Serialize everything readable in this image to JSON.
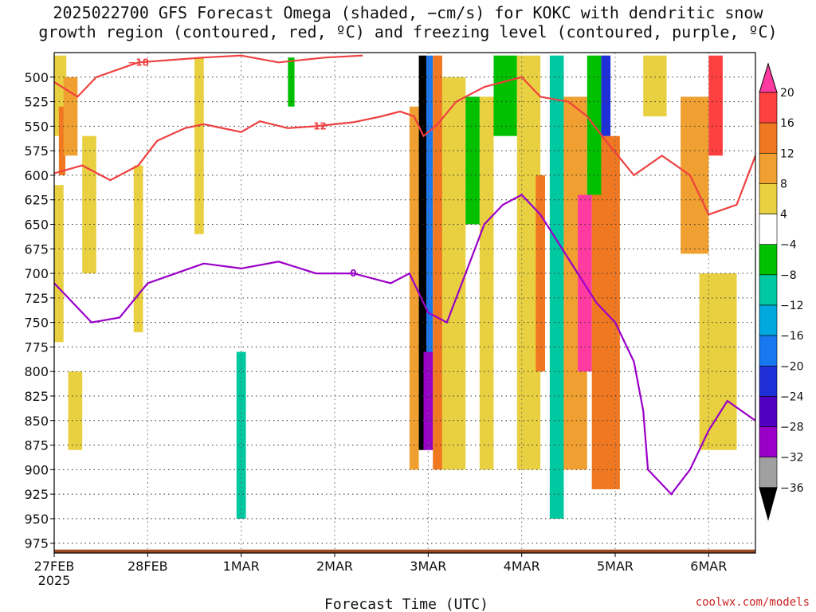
{
  "title": {
    "line1": "2025022700 GFS Forecast Omega (shaded, −cm/s) for KOKC with dendritic snow",
    "line2": "growth region (contoured, red, ºC) and freezing level (contoured, purple, ºC)"
  },
  "credit": "coolwx.com/models",
  "chart_data": {
    "type": "heatmap",
    "title": "2025022700 GFS Forecast Omega (shaded, −cm/s) for KOKC with dendritic snow growth region (contoured, red, ºC) and freezing level (contoured, purple, ºC)",
    "xlabel": "Forecast Time (UTC)",
    "ylabel": "",
    "x_ticks": [
      {
        "label": "27FEB",
        "sublabel": "2025",
        "day": 0
      },
      {
        "label": "28FEB",
        "day": 1
      },
      {
        "label": "1MAR",
        "day": 2
      },
      {
        "label": "2MAR",
        "day": 3
      },
      {
        "label": "3MAR",
        "day": 4
      },
      {
        "label": "4MAR",
        "day": 5
      },
      {
        "label": "5MAR",
        "day": 6
      },
      {
        "label": "6MAR",
        "day": 7
      }
    ],
    "xlim": [
      0,
      7.5
    ],
    "y_ticks": [
      500,
      525,
      550,
      575,
      600,
      625,
      650,
      675,
      700,
      725,
      750,
      775,
      800,
      825,
      850,
      875,
      900,
      925,
      950,
      975
    ],
    "ylim": [
      475,
      985
    ],
    "y_units": "hPa",
    "grid": true,
    "colorbar": {
      "ticks": [
        "20",
        "16",
        "12",
        "8",
        "4",
        "−4",
        "−8",
        "−12",
        "−16",
        "−20",
        "−24",
        "−28",
        "−32",
        "−36"
      ],
      "colors": [
        "#ff3aa0",
        "#ff4040",
        "#f07820",
        "#f0a030",
        "#e8d040",
        "#ffffff",
        "#00c000",
        "#00c8a0",
        "#00a8e0",
        "#1878f0",
        "#2030d8",
        "#5000c0",
        "#9a00c8",
        "#a0a0a0",
        "#000000"
      ]
    },
    "omega_regions": [
      {
        "day": [
          0.0,
          0.13
        ],
        "p": [
          478,
          560
        ],
        "color": "#e8d040"
      },
      {
        "day": [
          0.05,
          0.12
        ],
        "p": [
          530,
          600
        ],
        "color": "#f07820"
      },
      {
        "day": [
          0.1,
          0.25
        ],
        "p": [
          500,
          580
        ],
        "color": "#f0a030"
      },
      {
        "day": [
          0.0,
          0.1
        ],
        "p": [
          610,
          770
        ],
        "color": "#e8d040"
      },
      {
        "day": [
          0.15,
          0.3
        ],
        "p": [
          800,
          880
        ],
        "color": "#e8d040"
      },
      {
        "day": [
          0.3,
          0.45
        ],
        "p": [
          560,
          700
        ],
        "color": "#e8d040"
      },
      {
        "day": [
          0.85,
          0.95
        ],
        "p": [
          590,
          760
        ],
        "color": "#e8d040"
      },
      {
        "day": [
          1.5,
          1.6
        ],
        "p": [
          480,
          660
        ],
        "color": "#e8d040"
      },
      {
        "day": [
          1.95,
          2.05
        ],
        "p": [
          780,
          950
        ],
        "color": "#00c8a0"
      },
      {
        "day": [
          2.5,
          2.57
        ],
        "p": [
          480,
          530
        ],
        "color": "#00c000"
      },
      {
        "day": [
          3.8,
          3.9
        ],
        "p": [
          530,
          900
        ],
        "color": "#f0a030"
      },
      {
        "day": [
          3.9,
          3.98
        ],
        "p": [
          478,
          880
        ],
        "color": "#000000"
      },
      {
        "day": [
          3.98,
          4.05
        ],
        "p": [
          478,
          880
        ],
        "color": "#1878f0"
      },
      {
        "day": [
          3.95,
          4.05
        ],
        "p": [
          780,
          880
        ],
        "color": "#9a00c8"
      },
      {
        "day": [
          4.05,
          4.15
        ],
        "p": [
          478,
          900
        ],
        "color": "#f07820"
      },
      {
        "day": [
          4.15,
          4.4
        ],
        "p": [
          500,
          900
        ],
        "color": "#e8d040"
      },
      {
        "day": [
          4.4,
          4.55
        ],
        "p": [
          520,
          650
        ],
        "color": "#00c000"
      },
      {
        "day": [
          4.55,
          4.7
        ],
        "p": [
          520,
          900
        ],
        "color": "#e8d040"
      },
      {
        "day": [
          4.7,
          4.95
        ],
        "p": [
          478,
          560
        ],
        "color": "#00c000"
      },
      {
        "day": [
          4.95,
          5.2
        ],
        "p": [
          478,
          900
        ],
        "color": "#e8d040"
      },
      {
        "day": [
          5.15,
          5.25
        ],
        "p": [
          600,
          800
        ],
        "color": "#f07820"
      },
      {
        "day": [
          5.3,
          5.45
        ],
        "p": [
          478,
          950
        ],
        "color": "#00c8a0"
      },
      {
        "day": [
          5.45,
          5.7
        ],
        "p": [
          520,
          900
        ],
        "color": "#f0a030"
      },
      {
        "day": [
          5.6,
          5.75
        ],
        "p": [
          620,
          800
        ],
        "color": "#ff3aa0"
      },
      {
        "day": [
          5.75,
          6.05
        ],
        "p": [
          560,
          920
        ],
        "color": "#f07820"
      },
      {
        "day": [
          5.85,
          5.95
        ],
        "p": [
          478,
          560
        ],
        "color": "#2030d8"
      },
      {
        "day": [
          5.7,
          5.85
        ],
        "p": [
          478,
          620
        ],
        "color": "#00c000"
      },
      {
        "day": [
          6.3,
          6.55
        ],
        "p": [
          478,
          540
        ],
        "color": "#e8d040"
      },
      {
        "day": [
          6.7,
          7.0
        ],
        "p": [
          520,
          680
        ],
        "color": "#f0a030"
      },
      {
        "day": [
          7.0,
          7.15
        ],
        "p": [
          478,
          580
        ],
        "color": "#ff4040"
      },
      {
        "day": [
          6.9,
          7.3
        ],
        "p": [
          700,
          880
        ],
        "color": "#e8d040"
      }
    ],
    "contours": [
      {
        "label": "−18",
        "color": "#ee4040",
        "points": [
          [
            0.0,
            505
          ],
          [
            0.25,
            520
          ],
          [
            0.45,
            500
          ],
          [
            0.9,
            485
          ],
          [
            1.6,
            480
          ],
          [
            2.0,
            478
          ],
          [
            2.4,
            485
          ],
          [
            2.9,
            480
          ],
          [
            3.3,
            478
          ]
        ]
      },
      {
        "label": "−12",
        "color": "#ee4040",
        "points": [
          [
            0.0,
            598
          ],
          [
            0.3,
            590
          ],
          [
            0.6,
            605
          ],
          [
            0.9,
            590
          ],
          [
            1.1,
            565
          ],
          [
            1.4,
            552
          ],
          [
            1.6,
            548
          ],
          [
            2.0,
            556
          ],
          [
            2.2,
            545
          ],
          [
            2.5,
            552
          ],
          [
            2.8,
            550
          ],
          [
            3.2,
            546
          ],
          [
            3.5,
            540
          ],
          [
            3.7,
            535
          ],
          [
            3.85,
            540
          ],
          [
            3.95,
            560
          ],
          [
            4.1,
            548
          ],
          [
            4.3,
            525
          ],
          [
            4.6,
            510
          ],
          [
            5.0,
            500
          ],
          [
            5.2,
            520
          ],
          [
            5.5,
            525
          ],
          [
            5.7,
            540
          ],
          [
            5.9,
            565
          ],
          [
            6.2,
            600
          ],
          [
            6.5,
            580
          ],
          [
            6.8,
            600
          ],
          [
            7.0,
            640
          ],
          [
            7.3,
            630
          ],
          [
            7.5,
            580
          ]
        ]
      },
      {
        "label": "0",
        "color": "#9a00c8",
        "points": [
          [
            0.0,
            710
          ],
          [
            0.15,
            725
          ],
          [
            0.4,
            750
          ],
          [
            0.7,
            745
          ],
          [
            1.0,
            710
          ],
          [
            1.3,
            700
          ],
          [
            1.6,
            690
          ],
          [
            2.0,
            695
          ],
          [
            2.4,
            688
          ],
          [
            2.8,
            700
          ],
          [
            3.2,
            700
          ],
          [
            3.6,
            710
          ],
          [
            3.8,
            700
          ],
          [
            4.0,
            740
          ],
          [
            4.2,
            750
          ],
          [
            4.4,
            700
          ],
          [
            4.6,
            650
          ],
          [
            4.8,
            630
          ],
          [
            5.0,
            620
          ],
          [
            5.2,
            640
          ],
          [
            5.4,
            670
          ],
          [
            5.6,
            700
          ],
          [
            5.8,
            730
          ],
          [
            6.0,
            750
          ],
          [
            6.2,
            790
          ],
          [
            6.3,
            840
          ],
          [
            6.35,
            900
          ],
          [
            6.6,
            925
          ],
          [
            6.8,
            900
          ],
          [
            7.0,
            860
          ],
          [
            7.2,
            830
          ],
          [
            7.5,
            850
          ]
        ]
      }
    ],
    "terrain_pressure_hpa": 975
  }
}
